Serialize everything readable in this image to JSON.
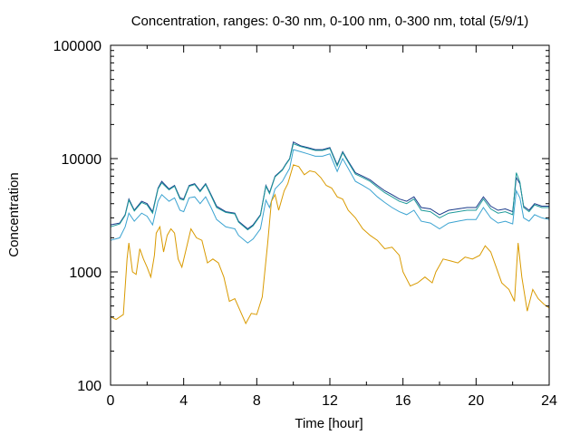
{
  "chart_data": {
    "type": "line",
    "title": "Concentration, ranges: 0-30 nm, 0-100 nm, 0-300 nm, total (5/9/1)",
    "xlabel": "Time [hour]",
    "ylabel": "Concentration",
    "xlim": [
      0,
      24
    ],
    "ylim": [
      100,
      100000
    ],
    "yscale": "log",
    "grid": false,
    "legend": "none",
    "x_ticks": [
      0,
      4,
      8,
      12,
      16,
      20,
      24
    ],
    "x_tick_labels": [
      "0",
      "4",
      "8",
      "12",
      "16",
      "20",
      "24"
    ],
    "y_ticks": [
      100,
      1000,
      10000,
      100000
    ],
    "y_tick_labels": [
      "100",
      "1000",
      "10000",
      "100000"
    ],
    "series": [
      {
        "color": "#1a3a8a",
        "points": [
          [
            0,
            2600
          ],
          [
            0.5,
            2700
          ],
          [
            0.8,
            3200
          ],
          [
            1.0,
            4400
          ],
          [
            1.3,
            3500
          ],
          [
            1.7,
            4200
          ],
          [
            2.0,
            4000
          ],
          [
            2.3,
            3400
          ],
          [
            2.6,
            5500
          ],
          [
            2.8,
            6300
          ],
          [
            3.2,
            5400
          ],
          [
            3.5,
            5800
          ],
          [
            3.8,
            4500
          ],
          [
            4.0,
            4400
          ],
          [
            4.3,
            5800
          ],
          [
            4.6,
            6000
          ],
          [
            4.9,
            5200
          ],
          [
            5.2,
            6000
          ],
          [
            5.5,
            4800
          ],
          [
            5.8,
            3800
          ],
          [
            6.3,
            3400
          ],
          [
            6.8,
            3300
          ],
          [
            7.0,
            2800
          ],
          [
            7.5,
            2400
          ],
          [
            7.8,
            2600
          ],
          [
            8.2,
            3200
          ],
          [
            8.5,
            5800
          ],
          [
            8.7,
            5000
          ],
          [
            9.0,
            7000
          ],
          [
            9.4,
            8000
          ],
          [
            9.6,
            9000
          ],
          [
            9.8,
            10000
          ],
          [
            10.0,
            14000
          ],
          [
            10.4,
            13000
          ],
          [
            10.8,
            12500
          ],
          [
            11.2,
            12000
          ],
          [
            11.6,
            12000
          ],
          [
            12.0,
            12500
          ],
          [
            12.4,
            8800
          ],
          [
            12.7,
            11500
          ],
          [
            13.0,
            9500
          ],
          [
            13.4,
            7500
          ],
          [
            13.8,
            7000
          ],
          [
            14.2,
            6500
          ],
          [
            14.6,
            5800
          ],
          [
            15.0,
            5200
          ],
          [
            15.4,
            4800
          ],
          [
            15.8,
            4400
          ],
          [
            16.2,
            4200
          ],
          [
            16.6,
            4600
          ],
          [
            17.0,
            3700
          ],
          [
            17.5,
            3600
          ],
          [
            18.0,
            3200
          ],
          [
            18.5,
            3500
          ],
          [
            19.0,
            3600
          ],
          [
            19.5,
            3700
          ],
          [
            20.0,
            3700
          ],
          [
            20.4,
            4600
          ],
          [
            20.8,
            3800
          ],
          [
            21.2,
            3500
          ],
          [
            21.6,
            3600
          ],
          [
            22.0,
            3400
          ],
          [
            22.2,
            6800
          ],
          [
            22.4,
            6000
          ],
          [
            22.6,
            3800
          ],
          [
            22.9,
            3500
          ],
          [
            23.2,
            4000
          ],
          [
            23.6,
            3800
          ],
          [
            24,
            3800
          ]
        ]
      },
      {
        "color": "#1d9a9a",
        "points": [
          [
            0,
            2500
          ],
          [
            0.5,
            2650
          ],
          [
            0.8,
            3150
          ],
          [
            1.0,
            4300
          ],
          [
            1.3,
            3450
          ],
          [
            1.7,
            4100
          ],
          [
            2.0,
            3900
          ],
          [
            2.3,
            3300
          ],
          [
            2.6,
            5400
          ],
          [
            2.8,
            6100
          ],
          [
            3.2,
            5300
          ],
          [
            3.5,
            5700
          ],
          [
            3.8,
            4400
          ],
          [
            4.0,
            4300
          ],
          [
            4.3,
            5700
          ],
          [
            4.6,
            5900
          ],
          [
            4.9,
            5100
          ],
          [
            5.2,
            5900
          ],
          [
            5.5,
            4700
          ],
          [
            5.8,
            3700
          ],
          [
            6.3,
            3350
          ],
          [
            6.8,
            3250
          ],
          [
            7.0,
            2750
          ],
          [
            7.5,
            2350
          ],
          [
            7.8,
            2550
          ],
          [
            8.2,
            3150
          ],
          [
            8.5,
            5700
          ],
          [
            8.7,
            4900
          ],
          [
            9.0,
            6900
          ],
          [
            9.4,
            7900
          ],
          [
            9.6,
            8900
          ],
          [
            9.8,
            9900
          ],
          [
            10.0,
            13500
          ],
          [
            10.4,
            12800
          ],
          [
            10.8,
            12300
          ],
          [
            11.2,
            11800
          ],
          [
            11.6,
            11800
          ],
          [
            12.0,
            12300
          ],
          [
            12.4,
            8600
          ],
          [
            12.7,
            11300
          ],
          [
            13.0,
            9300
          ],
          [
            13.4,
            7300
          ],
          [
            13.8,
            6800
          ],
          [
            14.2,
            6300
          ],
          [
            14.6,
            5600
          ],
          [
            15.0,
            5000
          ],
          [
            15.4,
            4600
          ],
          [
            15.8,
            4200
          ],
          [
            16.2,
            4000
          ],
          [
            16.6,
            4400
          ],
          [
            17.0,
            3500
          ],
          [
            17.5,
            3400
          ],
          [
            18.0,
            3000
          ],
          [
            18.5,
            3300
          ],
          [
            19.0,
            3400
          ],
          [
            19.5,
            3500
          ],
          [
            20.0,
            3500
          ],
          [
            20.4,
            4400
          ],
          [
            20.8,
            3600
          ],
          [
            21.2,
            3300
          ],
          [
            21.6,
            3400
          ],
          [
            22.0,
            3200
          ],
          [
            22.2,
            7500
          ],
          [
            22.4,
            6200
          ],
          [
            22.6,
            3700
          ],
          [
            22.9,
            3400
          ],
          [
            23.2,
            3900
          ],
          [
            23.6,
            3700
          ],
          [
            24,
            3700
          ]
        ]
      },
      {
        "color": "#3ba3d1",
        "points": [
          [
            0,
            1900
          ],
          [
            0.5,
            2000
          ],
          [
            0.8,
            2500
          ],
          [
            1.0,
            3300
          ],
          [
            1.3,
            2800
          ],
          [
            1.7,
            3300
          ],
          [
            2.0,
            3100
          ],
          [
            2.3,
            2600
          ],
          [
            2.6,
            4200
          ],
          [
            2.8,
            4800
          ],
          [
            3.2,
            4200
          ],
          [
            3.5,
            4500
          ],
          [
            3.8,
            3500
          ],
          [
            4.0,
            3400
          ],
          [
            4.3,
            4500
          ],
          [
            4.6,
            4600
          ],
          [
            4.9,
            4000
          ],
          [
            5.2,
            4600
          ],
          [
            5.5,
            3700
          ],
          [
            5.8,
            2900
          ],
          [
            6.3,
            2500
          ],
          [
            6.8,
            2400
          ],
          [
            7.0,
            2100
          ],
          [
            7.5,
            1800
          ],
          [
            7.8,
            1950
          ],
          [
            8.2,
            2400
          ],
          [
            8.5,
            4300
          ],
          [
            8.7,
            3700
          ],
          [
            9.0,
            5400
          ],
          [
            9.4,
            6300
          ],
          [
            9.6,
            7200
          ],
          [
            9.8,
            8200
          ],
          [
            10.0,
            12000
          ],
          [
            10.4,
            11500
          ],
          [
            10.8,
            11000
          ],
          [
            11.2,
            10500
          ],
          [
            11.6,
            10500
          ],
          [
            12.0,
            11000
          ],
          [
            12.4,
            7700
          ],
          [
            12.7,
            10000
          ],
          [
            13.0,
            8200
          ],
          [
            13.4,
            6300
          ],
          [
            13.8,
            5800
          ],
          [
            14.2,
            5300
          ],
          [
            14.6,
            4600
          ],
          [
            15.0,
            4100
          ],
          [
            15.4,
            3700
          ],
          [
            15.8,
            3400
          ],
          [
            16.2,
            3200
          ],
          [
            16.6,
            3500
          ],
          [
            17.0,
            2800
          ],
          [
            17.5,
            2700
          ],
          [
            18.0,
            2400
          ],
          [
            18.5,
            2700
          ],
          [
            19.0,
            2800
          ],
          [
            19.5,
            2900
          ],
          [
            20.0,
            2900
          ],
          [
            20.4,
            3700
          ],
          [
            20.8,
            3000
          ],
          [
            21.2,
            2700
          ],
          [
            21.6,
            2800
          ],
          [
            22.0,
            2650
          ],
          [
            22.2,
            5200
          ],
          [
            22.4,
            4500
          ],
          [
            22.6,
            3000
          ],
          [
            22.9,
            2800
          ],
          [
            23.2,
            3200
          ],
          [
            23.6,
            3000
          ],
          [
            24,
            2900
          ]
        ]
      },
      {
        "color": "#d99a00",
        "points": [
          [
            0,
            400
          ],
          [
            0.3,
            380
          ],
          [
            0.7,
            420
          ],
          [
            0.9,
            1300
          ],
          [
            1.0,
            1800
          ],
          [
            1.2,
            1000
          ],
          [
            1.4,
            950
          ],
          [
            1.6,
            1600
          ],
          [
            1.8,
            1300
          ],
          [
            2.0,
            1100
          ],
          [
            2.2,
            900
          ],
          [
            2.4,
            1400
          ],
          [
            2.5,
            2200
          ],
          [
            2.7,
            2500
          ],
          [
            2.9,
            1500
          ],
          [
            3.1,
            2100
          ],
          [
            3.3,
            2400
          ],
          [
            3.5,
            2200
          ],
          [
            3.7,
            1300
          ],
          [
            3.9,
            1100
          ],
          [
            4.1,
            1500
          ],
          [
            4.4,
            2400
          ],
          [
            4.7,
            2000
          ],
          [
            5.0,
            1900
          ],
          [
            5.3,
            1200
          ],
          [
            5.6,
            1300
          ],
          [
            5.9,
            1200
          ],
          [
            6.2,
            900
          ],
          [
            6.5,
            550
          ],
          [
            6.8,
            580
          ],
          [
            7.1,
            450
          ],
          [
            7.4,
            350
          ],
          [
            7.7,
            430
          ],
          [
            8.0,
            420
          ],
          [
            8.3,
            600
          ],
          [
            8.6,
            1800
          ],
          [
            8.8,
            4200
          ],
          [
            9.0,
            4800
          ],
          [
            9.2,
            3500
          ],
          [
            9.5,
            5200
          ],
          [
            9.7,
            6000
          ],
          [
            10.0,
            8800
          ],
          [
            10.3,
            8500
          ],
          [
            10.6,
            7200
          ],
          [
            10.9,
            7800
          ],
          [
            11.2,
            7600
          ],
          [
            11.5,
            6800
          ],
          [
            11.8,
            5800
          ],
          [
            12.1,
            5500
          ],
          [
            12.4,
            4600
          ],
          [
            12.7,
            4400
          ],
          [
            13.0,
            3500
          ],
          [
            13.4,
            3000
          ],
          [
            13.8,
            2400
          ],
          [
            14.2,
            2100
          ],
          [
            14.6,
            1900
          ],
          [
            15.0,
            1600
          ],
          [
            15.4,
            1650
          ],
          [
            15.8,
            1400
          ],
          [
            16.0,
            1000
          ],
          [
            16.4,
            750
          ],
          [
            16.8,
            800
          ],
          [
            17.2,
            900
          ],
          [
            17.6,
            800
          ],
          [
            17.8,
            1000
          ],
          [
            18.2,
            1300
          ],
          [
            18.6,
            1250
          ],
          [
            19.0,
            1200
          ],
          [
            19.4,
            1350
          ],
          [
            19.8,
            1300
          ],
          [
            20.2,
            1400
          ],
          [
            20.5,
            1700
          ],
          [
            20.8,
            1500
          ],
          [
            21.1,
            1100
          ],
          [
            21.4,
            800
          ],
          [
            21.8,
            700
          ],
          [
            22.1,
            550
          ],
          [
            22.3,
            1800
          ],
          [
            22.5,
            900
          ],
          [
            22.8,
            450
          ],
          [
            23.1,
            700
          ],
          [
            23.4,
            580
          ],
          [
            23.7,
            520
          ],
          [
            24,
            480
          ]
        ]
      }
    ]
  }
}
